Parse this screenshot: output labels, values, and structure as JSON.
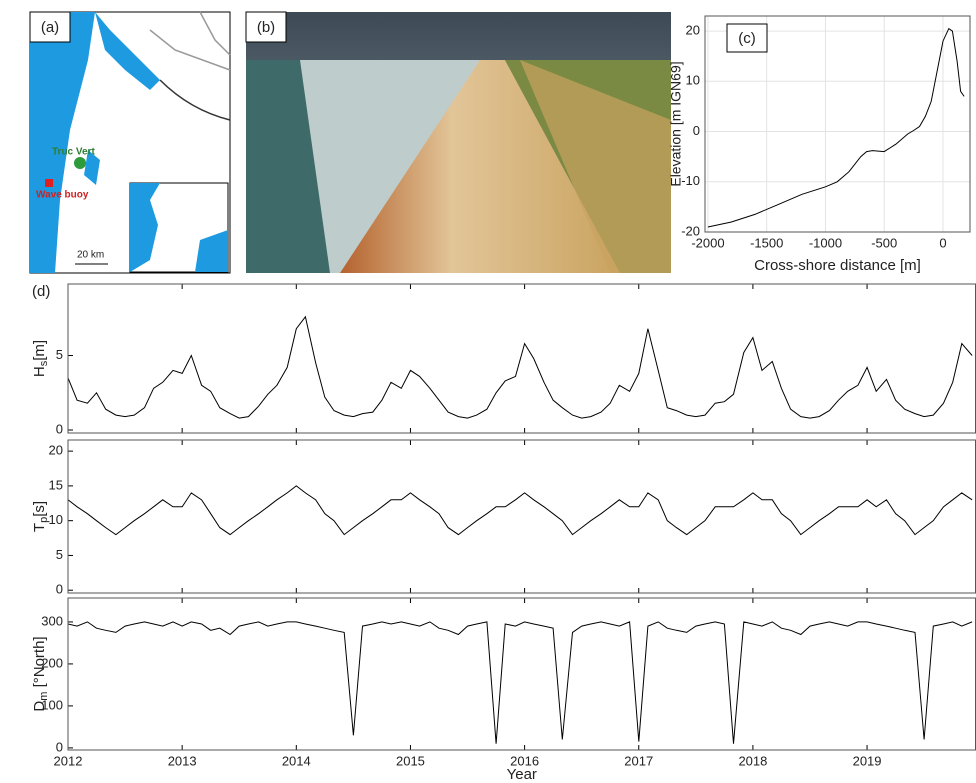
{
  "panels": {
    "a": {
      "label": "(a)",
      "site": "Truc Vert",
      "buoy": "Wave buoy",
      "scale": "20 km"
    },
    "b": {
      "label": "(b)"
    }
  },
  "chart_data": [
    {
      "type": "line",
      "label": "(c)",
      "xlabel": "Cross-shore distance [m]",
      "ylabel": "Elevation [m IGN69]",
      "grid": true,
      "xlim": [
        -2025,
        230
      ],
      "xticks": [
        -2000,
        -1500,
        -1000,
        -500,
        0
      ],
      "ylim": [
        -20,
        23
      ],
      "yticks": [
        -20,
        -10,
        0,
        10,
        20
      ],
      "x": [
        -2000,
        -1800,
        -1600,
        -1400,
        -1200,
        -1000,
        -900,
        -800,
        -700,
        -650,
        -600,
        -500,
        -400,
        -300,
        -250,
        -200,
        -150,
        -100,
        -50,
        0,
        50,
        80,
        120,
        150,
        180
      ],
      "series": [
        {
          "color": "#000000",
          "values": [
            -19,
            -18,
            -16.5,
            -14.5,
            -12.5,
            -11,
            -10,
            -8,
            -5,
            -4,
            -3.8,
            -4,
            -2.5,
            -0.5,
            0.2,
            1,
            3,
            6,
            12,
            18,
            20.5,
            20,
            14,
            8,
            7
          ]
        }
      ]
    },
    {
      "type": "line",
      "label": "(d)",
      "ylabel": [
        "H",
        "s",
        "[m]"
      ],
      "xlim": [
        2012,
        2019.95
      ],
      "ylim": [
        -0.2,
        9.8
      ],
      "yticks": [
        0,
        5
      ],
      "x": [
        2012.0,
        2012.08,
        2012.17,
        2012.25,
        2012.33,
        2012.42,
        2012.5,
        2012.58,
        2012.67,
        2012.75,
        2012.83,
        2012.92,
        2013.0,
        2013.08,
        2013.17,
        2013.25,
        2013.33,
        2013.42,
        2013.5,
        2013.58,
        2013.67,
        2013.75,
        2013.83,
        2013.92,
        2014.0,
        2014.08,
        2014.17,
        2014.25,
        2014.33,
        2014.42,
        2014.5,
        2014.58,
        2014.67,
        2014.75,
        2014.83,
        2014.92,
        2015.0,
        2015.08,
        2015.17,
        2015.25,
        2015.33,
        2015.42,
        2015.5,
        2015.58,
        2015.67,
        2015.75,
        2015.83,
        2015.92,
        2016.0,
        2016.08,
        2016.17,
        2016.25,
        2016.33,
        2016.42,
        2016.5,
        2016.58,
        2016.67,
        2016.75,
        2016.83,
        2016.92,
        2017.0,
        2017.08,
        2017.17,
        2017.25,
        2017.33,
        2017.42,
        2017.5,
        2017.58,
        2017.67,
        2017.75,
        2017.83,
        2017.92,
        2018.0,
        2018.08,
        2018.17,
        2018.25,
        2018.33,
        2018.42,
        2018.5,
        2018.58,
        2018.67,
        2018.75,
        2018.83,
        2018.92,
        2019.0,
        2019.08,
        2019.17,
        2019.25,
        2019.33,
        2019.42,
        2019.5,
        2019.58,
        2019.67,
        2019.75,
        2019.83,
        2019.92
      ],
      "series": [
        {
          "color": "#000000",
          "values": [
            3.5,
            2.0,
            1.8,
            2.5,
            1.4,
            1.0,
            0.9,
            1.0,
            1.5,
            2.8,
            3.2,
            4.0,
            3.8,
            5.0,
            3.0,
            2.6,
            1.5,
            1.1,
            0.8,
            0.9,
            1.6,
            2.4,
            3.0,
            4.2,
            6.8,
            7.6,
            4.5,
            2.2,
            1.3,
            1.0,
            0.9,
            1.1,
            1.2,
            2.0,
            3.2,
            2.8,
            4.0,
            3.6,
            2.8,
            2.0,
            1.2,
            0.9,
            0.8,
            1.0,
            1.4,
            2.5,
            3.3,
            3.6,
            5.8,
            4.8,
            3.2,
            2.0,
            1.5,
            1.0,
            0.8,
            0.9,
            1.2,
            1.8,
            3.0,
            2.6,
            3.8,
            6.8,
            4.0,
            1.5,
            1.3,
            1.0,
            0.9,
            1.0,
            1.8,
            1.9,
            2.4,
            5.2,
            6.2,
            4.0,
            4.6,
            2.8,
            1.4,
            0.9,
            0.8,
            0.9,
            1.3,
            2.0,
            2.6,
            3.0,
            4.2,
            2.6,
            3.4,
            2.0,
            1.4,
            1.1,
            0.9,
            1.0,
            1.8,
            3.2,
            5.8,
            5.0
          ]
        }
      ]
    },
    {
      "type": "line",
      "ylabel": [
        "T",
        "p",
        "[s]"
      ],
      "xlim": [
        2012,
        2019.95
      ],
      "ylim": [
        -0.4,
        21.6
      ],
      "yticks": [
        0,
        5,
        10,
        15,
        20
      ],
      "x": [
        2012.0,
        2012.08,
        2012.17,
        2012.25,
        2012.33,
        2012.42,
        2012.5,
        2012.58,
        2012.67,
        2012.75,
        2012.83,
        2012.92,
        2013.0,
        2013.08,
        2013.17,
        2013.25,
        2013.33,
        2013.42,
        2013.5,
        2013.58,
        2013.67,
        2013.75,
        2013.83,
        2013.92,
        2014.0,
        2014.08,
        2014.17,
        2014.25,
        2014.33,
        2014.42,
        2014.5,
        2014.58,
        2014.67,
        2014.75,
        2014.83,
        2014.92,
        2015.0,
        2015.08,
        2015.17,
        2015.25,
        2015.33,
        2015.42,
        2015.5,
        2015.58,
        2015.67,
        2015.75,
        2015.83,
        2015.92,
        2016.0,
        2016.08,
        2016.17,
        2016.25,
        2016.33,
        2016.42,
        2016.5,
        2016.58,
        2016.67,
        2016.75,
        2016.83,
        2016.92,
        2017.0,
        2017.08,
        2017.17,
        2017.25,
        2017.33,
        2017.42,
        2017.5,
        2017.58,
        2017.67,
        2017.75,
        2017.83,
        2017.92,
        2018.0,
        2018.08,
        2018.17,
        2018.25,
        2018.33,
        2018.42,
        2018.5,
        2018.58,
        2018.67,
        2018.75,
        2018.83,
        2018.92,
        2019.0,
        2019.08,
        2019.17,
        2019.25,
        2019.33,
        2019.42,
        2019.5,
        2019.58,
        2019.67,
        2019.75,
        2019.83,
        2019.92
      ],
      "series": [
        {
          "color": "#000000",
          "values": [
            13,
            12,
            11,
            10,
            9,
            8,
            9,
            10,
            11,
            12,
            13,
            12,
            12,
            14,
            13,
            11,
            9,
            8,
            9,
            10,
            11,
            12,
            13,
            14,
            15,
            14,
            13,
            11,
            10,
            8,
            9,
            10,
            11,
            12,
            13,
            13,
            14,
            13,
            12,
            11,
            9,
            8,
            9,
            10,
            11,
            12,
            12,
            13,
            14,
            13,
            12,
            11,
            10,
            8,
            9,
            10,
            11,
            12,
            13,
            12,
            12,
            14,
            13,
            10,
            9,
            8,
            9,
            10,
            12,
            12,
            12,
            13,
            14,
            13,
            13,
            11,
            10,
            8,
            9,
            10,
            11,
            12,
            12,
            12,
            13,
            12,
            13,
            11,
            10,
            8,
            9,
            10,
            12,
            13,
            14,
            13
          ]
        }
      ]
    },
    {
      "type": "line",
      "ylabel": [
        "D",
        "m",
        " [°North]"
      ],
      "xlabel": "Year",
      "xlim": [
        2012,
        2019.95
      ],
      "xticks": [
        2012,
        2013,
        2014,
        2015,
        2016,
        2017,
        2018,
        2019
      ],
      "ylim": [
        -5,
        357
      ],
      "yticks": [
        0,
        100,
        200,
        300
      ],
      "x": [
        2012.0,
        2012.08,
        2012.17,
        2012.25,
        2012.33,
        2012.42,
        2012.5,
        2012.58,
        2012.67,
        2012.75,
        2012.83,
        2012.92,
        2013.0,
        2013.08,
        2013.17,
        2013.25,
        2013.33,
        2013.42,
        2013.5,
        2013.58,
        2013.67,
        2013.75,
        2013.83,
        2013.92,
        2014.0,
        2014.08,
        2014.17,
        2014.25,
        2014.33,
        2014.42,
        2014.5,
        2014.58,
        2014.67,
        2014.75,
        2014.83,
        2014.92,
        2015.0,
        2015.08,
        2015.17,
        2015.25,
        2015.33,
        2015.42,
        2015.5,
        2015.58,
        2015.67,
        2015.75,
        2015.83,
        2015.92,
        2016.0,
        2016.08,
        2016.17,
        2016.25,
        2016.33,
        2016.42,
        2016.5,
        2016.58,
        2016.67,
        2016.75,
        2016.83,
        2016.92,
        2017.0,
        2017.08,
        2017.17,
        2017.25,
        2017.33,
        2017.42,
        2017.5,
        2017.58,
        2017.67,
        2017.75,
        2017.83,
        2017.92,
        2018.0,
        2018.08,
        2018.17,
        2018.25,
        2018.33,
        2018.42,
        2018.5,
        2018.58,
        2018.67,
        2018.75,
        2018.83,
        2018.92,
        2019.0,
        2019.08,
        2019.17,
        2019.25,
        2019.33,
        2019.42,
        2019.5,
        2019.58,
        2019.67,
        2019.75,
        2019.83,
        2019.92
      ],
      "series": [
        {
          "color": "#000000",
          "values": [
            295,
            290,
            300,
            285,
            280,
            275,
            290,
            295,
            300,
            295,
            290,
            300,
            290,
            300,
            295,
            280,
            285,
            270,
            290,
            295,
            300,
            290,
            295,
            300,
            300,
            295,
            290,
            285,
            280,
            275,
            30,
            290,
            295,
            300,
            295,
            300,
            295,
            290,
            300,
            285,
            280,
            270,
            290,
            295,
            300,
            10,
            295,
            290,
            300,
            295,
            290,
            285,
            20,
            275,
            290,
            295,
            300,
            295,
            290,
            300,
            15,
            290,
            300,
            285,
            280,
            275,
            290,
            295,
            300,
            295,
            10,
            300,
            295,
            290,
            300,
            285,
            280,
            270,
            290,
            295,
            300,
            295,
            290,
            300,
            300,
            295,
            290,
            285,
            280,
            275,
            20,
            290,
            295,
            300,
            290,
            300
          ]
        }
      ]
    }
  ]
}
